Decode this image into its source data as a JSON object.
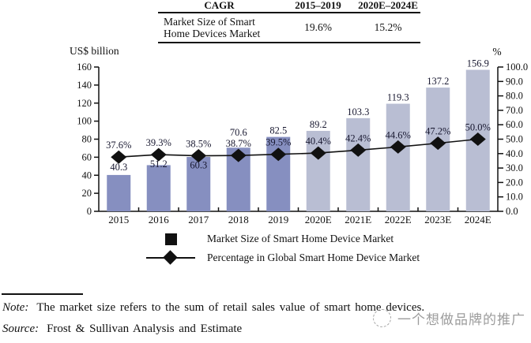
{
  "table": {
    "header": {
      "col1": "CAGR",
      "col2": "2015–2019",
      "col3": "2020E–2024E"
    },
    "row": {
      "label_line1": "Market Size of Smart",
      "label_line2": "Home Devices Market",
      "val1": "19.6%",
      "val2": "15.2%"
    }
  },
  "chart_data": {
    "type": "bar",
    "categories": [
      "2015",
      "2016",
      "2017",
      "2018",
      "2019",
      "2020E",
      "2021E",
      "2022E",
      "2023E",
      "2024E"
    ],
    "series": [
      {
        "name": "Market Size of Smart Home Device Market",
        "type": "bar",
        "axis": "left",
        "values": [
          40.3,
          51.2,
          60.3,
          70.6,
          82.5,
          89.2,
          103.3,
          119.3,
          137.2,
          156.9
        ]
      },
      {
        "name": "Percentage in Global Smart Home Device Market",
        "type": "line",
        "axis": "right",
        "values": [
          37.6,
          39.3,
          38.5,
          38.7,
          39.5,
          40.4,
          42.4,
          44.6,
          47.2,
          50.0
        ]
      }
    ],
    "left_axis": {
      "title": "US$ billion",
      "min": 0,
      "max": 160,
      "step": 20
    },
    "right_axis": {
      "title": "%",
      "min": 0,
      "max": 100,
      "step": 10
    },
    "bar_color_actual": "#868FC0",
    "bar_color_estimate": "#B9BED3",
    "line_color": "#111111",
    "grid": false,
    "legend_position": "bottom"
  },
  "legend": {
    "items": [
      {
        "marker": "square",
        "label": "Market Size of Smart Home Device Market"
      },
      {
        "marker": "line-diamond",
        "label": "Percentage in Global Smart Home Device Market"
      }
    ]
  },
  "footer": {
    "note_label": "Note:",
    "note_text": "The market size refers to the sum of retail sales value of smart home devices.",
    "source_label": "Source:",
    "source_text": "Frost & Sullivan Analysis and Estimate"
  },
  "watermark": {
    "text": "一个想做品牌的推广"
  }
}
